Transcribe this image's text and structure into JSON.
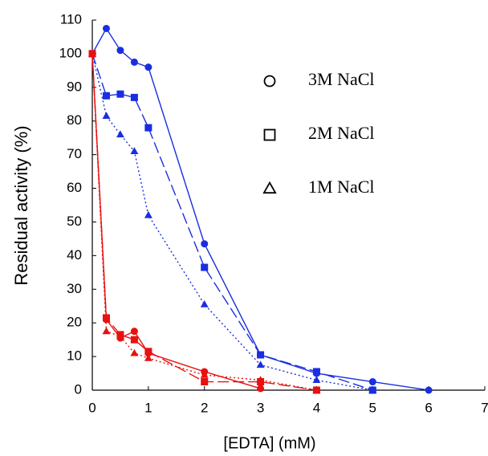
{
  "chart_data": {
    "type": "line",
    "x_label": "[EDTA] (mM)",
    "y_label": "Residual activity (%)",
    "xlim": [
      0,
      7
    ],
    "xticks": [
      0,
      1,
      2,
      3,
      4,
      5,
      6,
      7
    ],
    "ylim": [
      0,
      110
    ],
    "yticks": [
      0,
      10,
      20,
      30,
      40,
      50,
      60,
      70,
      80,
      90,
      100,
      110
    ],
    "legend": {
      "entries": [
        "3M NaCl",
        "2M NaCl",
        "1M NaCl"
      ],
      "markers": [
        "circle",
        "square",
        "triangle"
      ],
      "color": "#000000"
    },
    "series": [
      {
        "color": "#1a2ee0",
        "marker": "circle",
        "dash": "solid",
        "x": [
          0,
          0.25,
          0.5,
          0.75,
          1,
          2,
          3,
          4,
          5,
          6
        ],
        "values": [
          100,
          107.5,
          101,
          97.5,
          96,
          43.5,
          10.5,
          5,
          2.5,
          0
        ]
      },
      {
        "color": "#1a2ee0",
        "marker": "square",
        "dash": "dashed",
        "x": [
          0,
          0.25,
          0.5,
          0.75,
          1,
          2,
          3,
          4,
          5
        ],
        "values": [
          100,
          87.5,
          88,
          87,
          78,
          36.5,
          10.5,
          5.5,
          0
        ]
      },
      {
        "color": "#1a2ee0",
        "marker": "triangle",
        "dash": "dotted",
        "x": [
          0,
          0.25,
          0.5,
          0.75,
          1,
          2,
          3,
          4,
          5
        ],
        "values": [
          100,
          81.5,
          76,
          71,
          52,
          25.5,
          7.5,
          3,
          0
        ]
      },
      {
        "color": "#e81010",
        "marker": "circle",
        "dash": "solid",
        "x": [
          0,
          0.25,
          0.5,
          0.75,
          1,
          2,
          3
        ],
        "values": [
          100,
          21,
          15.5,
          17.5,
          11,
          5.5,
          0.5
        ]
      },
      {
        "color": "#e81010",
        "marker": "square",
        "dash": "dashed",
        "x": [
          0,
          0.25,
          0.5,
          0.75,
          1,
          2,
          3,
          4
        ],
        "values": [
          100,
          21.5,
          16.5,
          15,
          11.5,
          2.5,
          2.5,
          0
        ]
      },
      {
        "color": "#e81010",
        "marker": "triangle",
        "dash": "dotted",
        "x": [
          0,
          0.25,
          0.5,
          0.75,
          1,
          2,
          3,
          4
        ],
        "values": [
          100,
          17.5,
          16,
          11,
          9.5,
          4.5,
          3,
          0
        ]
      }
    ]
  }
}
